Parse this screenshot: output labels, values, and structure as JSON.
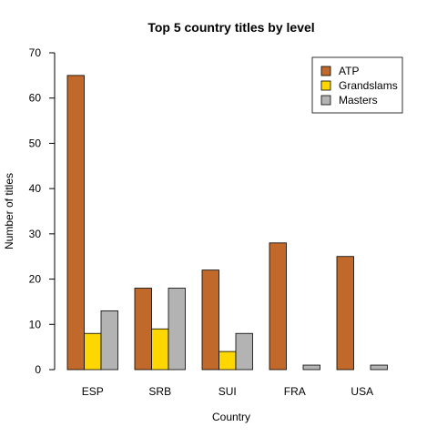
{
  "chart_data": {
    "type": "bar",
    "title": "Top 5 country titles by level",
    "xlabel": "Country",
    "ylabel": "Number of titles",
    "categories": [
      "ESP",
      "SRB",
      "SUI",
      "FRA",
      "USA"
    ],
    "series": [
      {
        "name": "ATP",
        "values": [
          65,
          18,
          22,
          28,
          25
        ],
        "color": "#c0692a"
      },
      {
        "name": "Grandslams",
        "values": [
          8,
          9,
          4,
          0,
          0
        ],
        "color": "#ffd700"
      },
      {
        "name": "Masters",
        "values": [
          13,
          18,
          8,
          1,
          1
        ],
        "color": "#b3b3b3"
      }
    ],
    "ylim": [
      0,
      70
    ],
    "yticks": [
      0,
      10,
      20,
      30,
      40,
      50,
      60,
      70
    ],
    "legend_position": "top-right",
    "grid": false
  }
}
